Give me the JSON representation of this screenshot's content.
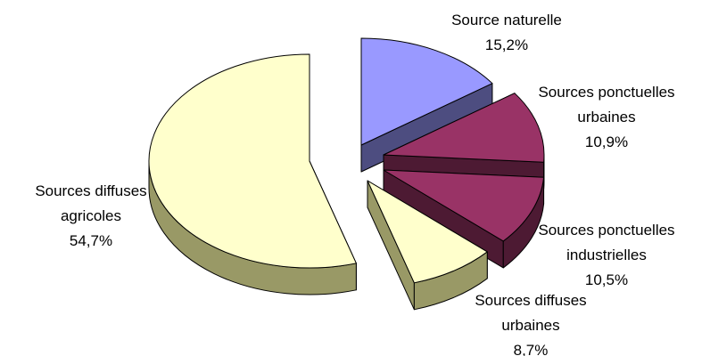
{
  "chart_data": {
    "type": "pie",
    "style": "3d-exploded",
    "title": "",
    "slices": [
      {
        "name": "Source naturelle",
        "label_lines": [
          "Source naturelle"
        ],
        "value_label": "15,2%",
        "value": 15.2,
        "color": "#9999ff",
        "side_color": "#4d4d80"
      },
      {
        "name": "Sources ponctuelles urbaines",
        "label_lines": [
          "Sources ponctuelles",
          "urbaines"
        ],
        "value_label": "10,9%",
        "value": 10.9,
        "color": "#993366",
        "side_color": "#4d1a33"
      },
      {
        "name": "Sources ponctuelles industrielles",
        "label_lines": [
          "Sources ponctuelles",
          "industrielles"
        ],
        "value_label": "10,5%",
        "value": 10.5,
        "color": "#993366",
        "side_color": "#4d1a33"
      },
      {
        "name": "Sources diffuses urbaines",
        "label_lines": [
          "Sources diffuses",
          "urbaines"
        ],
        "value_label": "8,7%",
        "value": 8.7,
        "color": "#ffffcc",
        "side_color": "#999966"
      },
      {
        "name": "Sources diffuses agricoles",
        "label_lines": [
          "Sources diffuses",
          "agricoles"
        ],
        "value_label": "54,7%",
        "value": 54.7,
        "color": "#ffffcc",
        "side_color": "#999966"
      }
    ]
  }
}
